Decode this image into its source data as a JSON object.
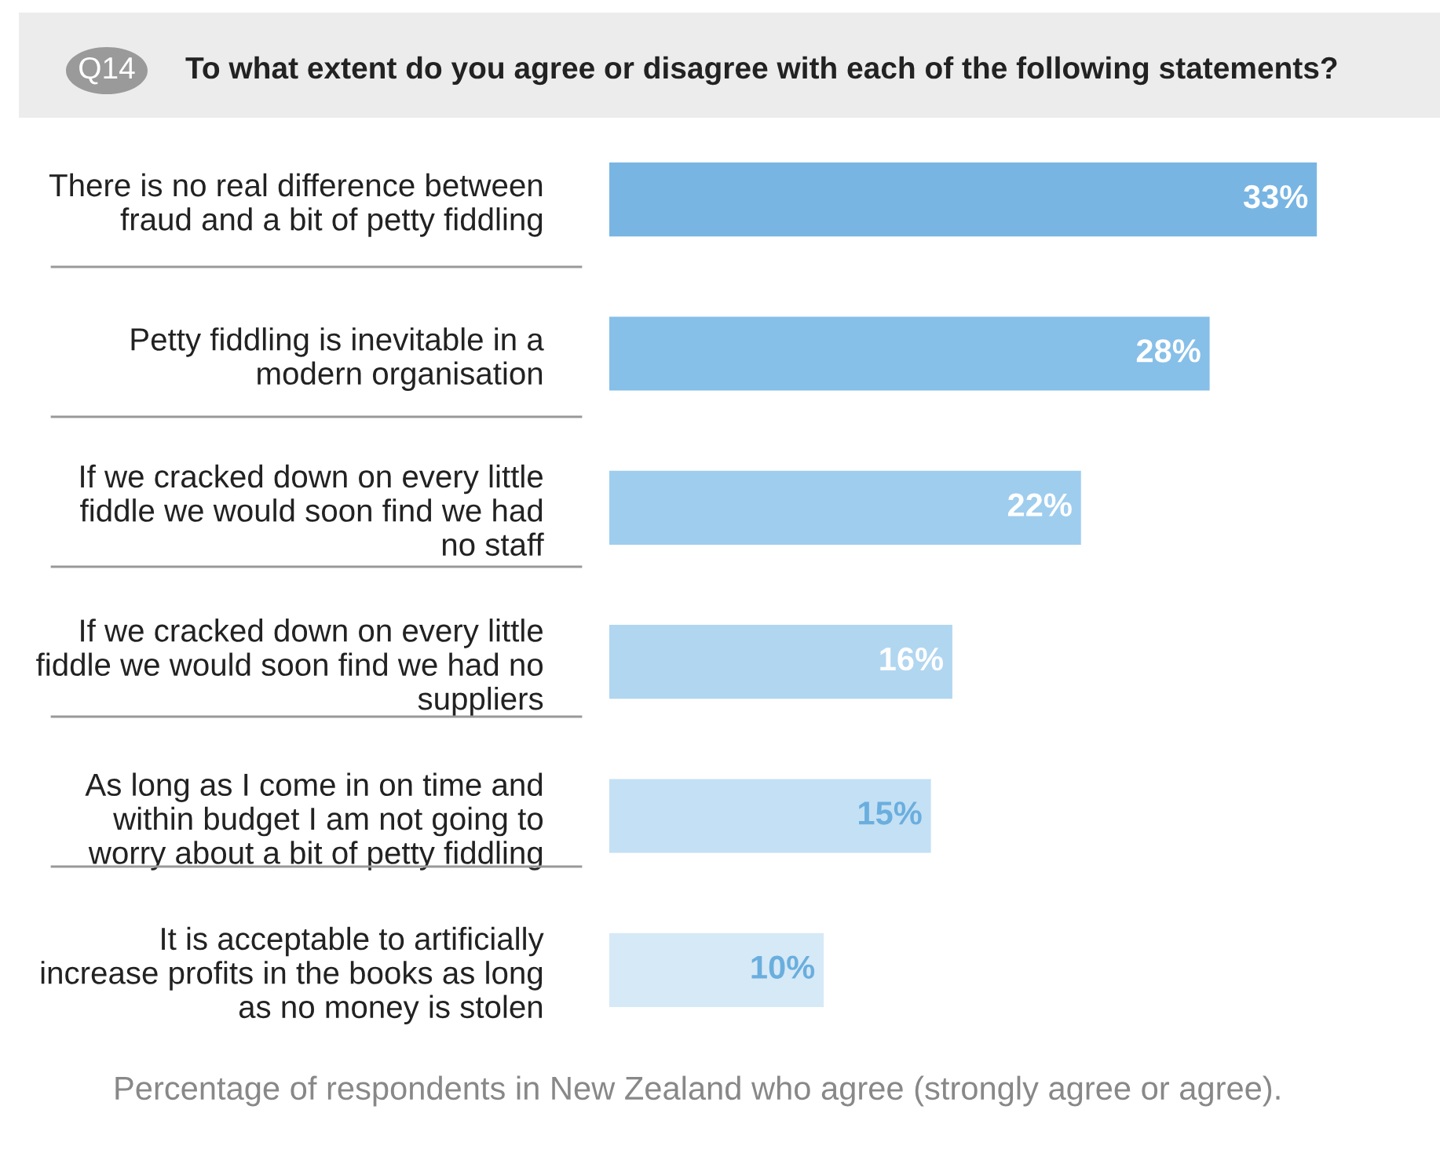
{
  "chart_data": {
    "type": "bar",
    "orientation": "horizontal",
    "title": "To what extent do you agree or disagree with each of the following statements?",
    "categories": [
      "There is no real difference between\nfraud and a bit of petty fiddling",
      "Petty fiddling is inevitable in a\nmodern organisation",
      "If we cracked down on every little\nfiddle we would soon find we had\nno staff",
      "If we cracked down on every little\nfiddle we would soon find we had no\nsuppliers",
      "As long as I come in on time and\nwithin budget I am not going to\nworry about a bit of petty fiddling",
      "It is acceptable to artificially\nincrease profits in the books as long\nas no money is stolen"
    ],
    "values": [
      33,
      28,
      22,
      16,
      15,
      10
    ],
    "colors": [
      "#78b5e3",
      "#86bfe8",
      "#9fcdee",
      "#b1d6f0",
      "#c4e0f4",
      "#d6e9f7"
    ],
    "value_labels": [
      "33%",
      "28%",
      "22%",
      "16%",
      "15%",
      "10%"
    ],
    "annotations": [
      "Q14",
      "Percentage of respondents in New Zealand who agree (strongly agree or agree)."
    ],
    "grid": false,
    "legend": false
  }
}
